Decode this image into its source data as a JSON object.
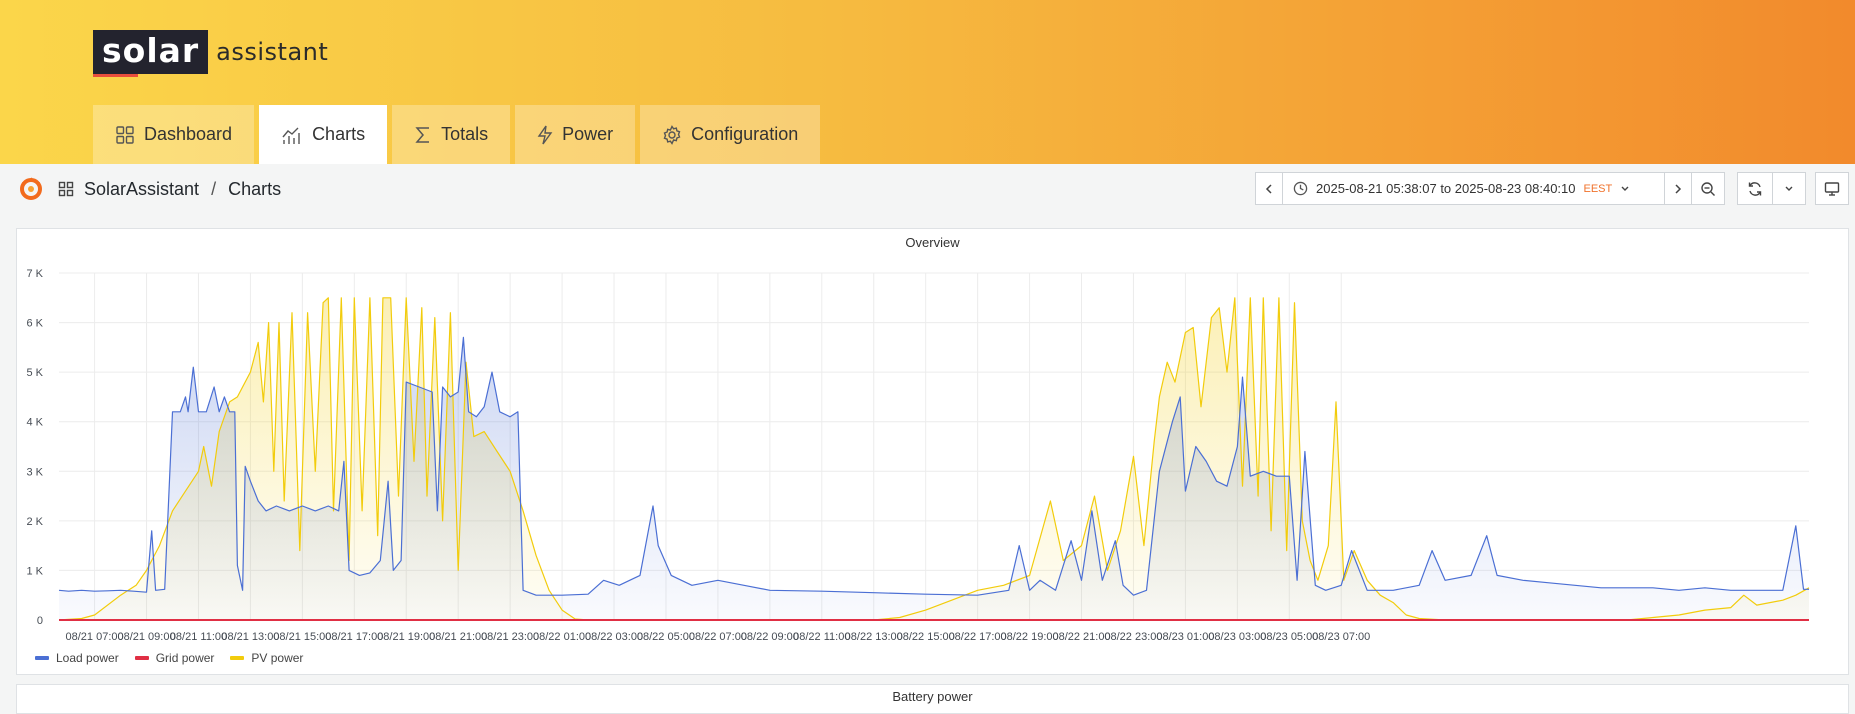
{
  "logo": {
    "solar": "solar",
    "assistant": "assistant"
  },
  "nav": {
    "tabs": [
      {
        "label": "Dashboard",
        "icon": "grid-icon"
      },
      {
        "label": "Charts",
        "icon": "chart-icon",
        "active": true
      },
      {
        "label": "Totals",
        "icon": "sigma-icon"
      },
      {
        "label": "Power",
        "icon": "bolt-icon"
      },
      {
        "label": "Configuration",
        "icon": "gear-icon"
      }
    ]
  },
  "breadcrumb": {
    "home": "SolarAssistant",
    "separator": "/",
    "page": "Charts"
  },
  "time_range": {
    "text": "2025-08-21 05:38:07 to 2025-08-23 08:40:10",
    "timezone": "EEST"
  },
  "panel": {
    "title": "Overview"
  },
  "panel2": {
    "title": "Battery power"
  },
  "legend": [
    {
      "name": "Load power",
      "color": "#4b6fd4"
    },
    {
      "name": "Grid power",
      "color": "#e02f44"
    },
    {
      "name": "PV power",
      "color": "#f2cc0c"
    }
  ],
  "chart_data": {
    "type": "line",
    "title": "Overview",
    "ylim": [
      0,
      7000
    ],
    "y_ticks": [
      "0",
      "1 K",
      "2 K",
      "3 K",
      "4 K",
      "5 K",
      "6 K",
      "7 K"
    ],
    "x_ticks": [
      "08/21 07:00",
      "08/21 09:00",
      "08/21 11:00",
      "08/21 13:00",
      "08/21 15:00",
      "08/21 17:00",
      "08/21 19:00",
      "08/21 21:00",
      "08/21 23:00",
      "08/22 01:00",
      "08/22 03:00",
      "08/22 05:00",
      "08/22 07:00",
      "08/22 09:00",
      "08/22 11:00",
      "08/22 13:00",
      "08/22 15:00",
      "08/22 17:00",
      "08/22 19:00",
      "08/22 21:00",
      "08/22 23:00",
      "08/23 01:00",
      "08/23 03:00",
      "08/23 05:00",
      "08/23 07:00"
    ],
    "grid": true,
    "legend_position": "bottom-left",
    "x_unit": "hours since 08/21 00:00",
    "series": [
      {
        "name": "Load power",
        "color": "#4b6fd4",
        "points": [
          [
            5.63,
            600
          ],
          [
            6,
            580
          ],
          [
            6.5,
            600
          ],
          [
            7,
            580
          ],
          [
            7.5,
            590
          ],
          [
            8,
            600
          ],
          [
            8.5,
            580
          ],
          [
            9,
            560
          ],
          [
            9.2,
            1800
          ],
          [
            9.35,
            600
          ],
          [
            9.7,
            620
          ],
          [
            10,
            4200
          ],
          [
            10.3,
            4200
          ],
          [
            10.5,
            4500
          ],
          [
            10.6,
            4200
          ],
          [
            10.8,
            5100
          ],
          [
            11,
            4200
          ],
          [
            11.3,
            4200
          ],
          [
            11.6,
            4700
          ],
          [
            11.8,
            4200
          ],
          [
            12.0,
            4500
          ],
          [
            12.2,
            4200
          ],
          [
            12.4,
            4200
          ],
          [
            12.5,
            1100
          ],
          [
            12.7,
            600
          ],
          [
            12.8,
            3100
          ],
          [
            13,
            2800
          ],
          [
            13.3,
            2400
          ],
          [
            13.6,
            2200
          ],
          [
            14,
            2300
          ],
          [
            14.5,
            2200
          ],
          [
            15,
            2300
          ],
          [
            15.5,
            2200
          ],
          [
            16,
            2300
          ],
          [
            16.4,
            2200
          ],
          [
            16.6,
            3200
          ],
          [
            16.8,
            1000
          ],
          [
            17.2,
            900
          ],
          [
            17.6,
            950
          ],
          [
            18,
            1200
          ],
          [
            18.3,
            2800
          ],
          [
            18.5,
            1000
          ],
          [
            18.8,
            1200
          ],
          [
            19.0,
            4800
          ],
          [
            19.5,
            4700
          ],
          [
            20,
            4600
          ],
          [
            20.2,
            2200
          ],
          [
            20.4,
            4700
          ],
          [
            20.7,
            4500
          ],
          [
            21.0,
            4600
          ],
          [
            21.2,
            5700
          ],
          [
            21.4,
            4200
          ],
          [
            21.7,
            4100
          ],
          [
            22,
            4300
          ],
          [
            22.3,
            5000
          ],
          [
            22.6,
            4200
          ],
          [
            23,
            4100
          ],
          [
            23.3,
            4200
          ],
          [
            23.5,
            600
          ],
          [
            24,
            500
          ],
          [
            25,
            500
          ],
          [
            26,
            520
          ],
          [
            26.6,
            800
          ],
          [
            27.2,
            700
          ],
          [
            28,
            900
          ],
          [
            28.5,
            2300
          ],
          [
            28.7,
            1500
          ],
          [
            29.2,
            900
          ],
          [
            30,
            700
          ],
          [
            31,
            800
          ],
          [
            32,
            700
          ],
          [
            33,
            600
          ],
          [
            35,
            580
          ],
          [
            37,
            550
          ],
          [
            39,
            520
          ],
          [
            41,
            500
          ],
          [
            42.2,
            600
          ],
          [
            42.6,
            1500
          ],
          [
            43,
            600
          ],
          [
            43.4,
            800
          ],
          [
            44,
            600
          ],
          [
            44.6,
            1600
          ],
          [
            45,
            800
          ],
          [
            45.4,
            2200
          ],
          [
            45.8,
            800
          ],
          [
            46.3,
            1600
          ],
          [
            46.6,
            700
          ],
          [
            47,
            500
          ],
          [
            47.5,
            600
          ],
          [
            48,
            3000
          ],
          [
            48.5,
            4000
          ],
          [
            48.8,
            4500
          ],
          [
            49,
            2600
          ],
          [
            49.4,
            3500
          ],
          [
            49.8,
            3200
          ],
          [
            50.2,
            2800
          ],
          [
            50.6,
            2700
          ],
          [
            51,
            3500
          ],
          [
            51.2,
            4900
          ],
          [
            51.5,
            2900
          ],
          [
            52,
            3000
          ],
          [
            52.5,
            2900
          ],
          [
            53,
            2900
          ],
          [
            53.3,
            800
          ],
          [
            53.6,
            3400
          ],
          [
            54,
            700
          ],
          [
            54.4,
            600
          ],
          [
            55,
            700
          ],
          [
            55.4,
            1400
          ],
          [
            56,
            600
          ],
          [
            57,
            600
          ],
          [
            58,
            700
          ],
          [
            58.5,
            1400
          ],
          [
            59,
            800
          ],
          [
            60,
            900
          ],
          [
            60.6,
            1700
          ],
          [
            61,
            900
          ],
          [
            62,
            800
          ],
          [
            63,
            750
          ],
          [
            64,
            700
          ],
          [
            65,
            650
          ],
          [
            66,
            650
          ],
          [
            67,
            650
          ],
          [
            68,
            600
          ],
          [
            69,
            650
          ],
          [
            70,
            600
          ],
          [
            71,
            600
          ],
          [
            72,
            600
          ],
          [
            72.5,
            1900
          ],
          [
            72.8,
            620
          ],
          [
            73.01,
            620
          ]
        ]
      },
      {
        "name": "Grid power",
        "color": "#e02f44",
        "points": [
          [
            5.63,
            0
          ],
          [
            73.01,
            0
          ]
        ]
      },
      {
        "name": "PV power",
        "color": "#f2cc0c",
        "points": [
          [
            5.63,
            0
          ],
          [
            6.5,
            30
          ],
          [
            7,
            100
          ],
          [
            8,
            500
          ],
          [
            8.6,
            700
          ],
          [
            9,
            1000
          ],
          [
            9.5,
            1500
          ],
          [
            10,
            2200
          ],
          [
            10.5,
            2600
          ],
          [
            11,
            3000
          ],
          [
            11.2,
            3500
          ],
          [
            11.5,
            2700
          ],
          [
            11.8,
            3800
          ],
          [
            12.2,
            4400
          ],
          [
            12.5,
            4500
          ],
          [
            13,
            5000
          ],
          [
            13.3,
            5600
          ],
          [
            13.5,
            4400
          ],
          [
            13.7,
            6000
          ],
          [
            13.9,
            3000
          ],
          [
            14.1,
            6000
          ],
          [
            14.3,
            2400
          ],
          [
            14.6,
            6200
          ],
          [
            14.9,
            1400
          ],
          [
            15.2,
            6200
          ],
          [
            15.5,
            3000
          ],
          [
            15.8,
            6400
          ],
          [
            16,
            6500
          ],
          [
            16.2,
            2200
          ],
          [
            16.5,
            6500
          ],
          [
            16.8,
            1200
          ],
          [
            17,
            6500
          ],
          [
            17.3,
            2200
          ],
          [
            17.6,
            6500
          ],
          [
            17.9,
            1700
          ],
          [
            18.1,
            6500
          ],
          [
            18.4,
            6500
          ],
          [
            18.7,
            2500
          ],
          [
            19,
            6500
          ],
          [
            19.3,
            3200
          ],
          [
            19.6,
            6300
          ],
          [
            19.8,
            2500
          ],
          [
            20.1,
            6100
          ],
          [
            20.4,
            2000
          ],
          [
            20.7,
            6200
          ],
          [
            21,
            1000
          ],
          [
            21.3,
            5200
          ],
          [
            21.6,
            3700
          ],
          [
            22,
            3800
          ],
          [
            22.5,
            3400
          ],
          [
            23,
            3000
          ],
          [
            23.5,
            2200
          ],
          [
            24,
            1300
          ],
          [
            24.5,
            600
          ],
          [
            25,
            200
          ],
          [
            25.5,
            20
          ],
          [
            26,
            0
          ],
          [
            37,
            0
          ],
          [
            38,
            50
          ],
          [
            39,
            200
          ],
          [
            40,
            400
          ],
          [
            41,
            600
          ],
          [
            42,
            700
          ],
          [
            43,
            900
          ],
          [
            43.8,
            2400
          ],
          [
            44.3,
            1200
          ],
          [
            45,
            1500
          ],
          [
            45.5,
            2500
          ],
          [
            46,
            1000
          ],
          [
            46.5,
            1800
          ],
          [
            47,
            3300
          ],
          [
            47.4,
            1500
          ],
          [
            47.8,
            3600
          ],
          [
            48,
            4500
          ],
          [
            48.3,
            5200
          ],
          [
            48.6,
            4800
          ],
          [
            49,
            5800
          ],
          [
            49.3,
            5900
          ],
          [
            49.6,
            4300
          ],
          [
            50,
            6100
          ],
          [
            50.3,
            6300
          ],
          [
            50.6,
            5000
          ],
          [
            50.9,
            6500
          ],
          [
            51.2,
            2700
          ],
          [
            51.5,
            6500
          ],
          [
            51.8,
            2500
          ],
          [
            52,
            6500
          ],
          [
            52.3,
            1800
          ],
          [
            52.6,
            6500
          ],
          [
            52.9,
            1400
          ],
          [
            53.2,
            6400
          ],
          [
            53.5,
            2000
          ],
          [
            53.8,
            1200
          ],
          [
            54.1,
            800
          ],
          [
            54.5,
            1500
          ],
          [
            54.8,
            4400
          ],
          [
            55.1,
            800
          ],
          [
            55.5,
            1400
          ],
          [
            56,
            800
          ],
          [
            56.5,
            500
          ],
          [
            57,
            350
          ],
          [
            57.5,
            100
          ],
          [
            58,
            30
          ],
          [
            59,
            0
          ],
          [
            66,
            0
          ],
          [
            67,
            50
          ],
          [
            68,
            100
          ],
          [
            69,
            200
          ],
          [
            70,
            250
          ],
          [
            70.5,
            500
          ],
          [
            71,
            300
          ],
          [
            72,
            400
          ],
          [
            72.5,
            500
          ],
          [
            73.01,
            650
          ]
        ]
      }
    ]
  }
}
